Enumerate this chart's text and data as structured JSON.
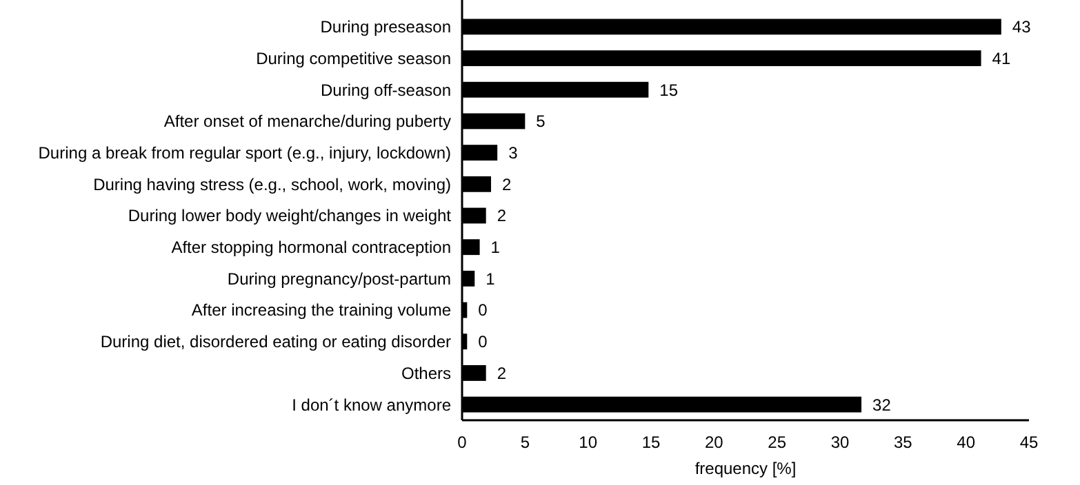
{
  "chart_data": {
    "type": "bar",
    "orientation": "horizontal",
    "xlabel": "frequency [%]",
    "categories": [
      "During preseason",
      "During competitive season",
      "During off-season",
      "After onset of menarche/during puberty",
      "During a break from regular sport (e.g., injury, lockdown)",
      "During having stress (e.g., school, work, moving)",
      "During lower body weight/changes in weight",
      "After stopping hormonal contraception",
      "During pregnancy/post-partum",
      "After increasing the training volume",
      "During diet, disordered eating or eating disorder",
      "Others",
      "I don´t know anymore"
    ],
    "values": [
      42.8,
      41.2,
      14.8,
      5.0,
      2.8,
      2.3,
      1.9,
      1.4,
      1.0,
      0.4,
      0.4,
      1.9,
      31.7
    ],
    "value_labels": [
      "43",
      "41",
      "15",
      "5",
      "3",
      "2",
      "2",
      "1",
      "1",
      "0",
      "0",
      "2",
      "32"
    ],
    "color": "#000000",
    "xlim": [
      0,
      45
    ],
    "xticks": [
      0,
      5,
      10,
      15,
      20,
      25,
      30,
      35,
      40,
      45
    ],
    "grid": false
  }
}
